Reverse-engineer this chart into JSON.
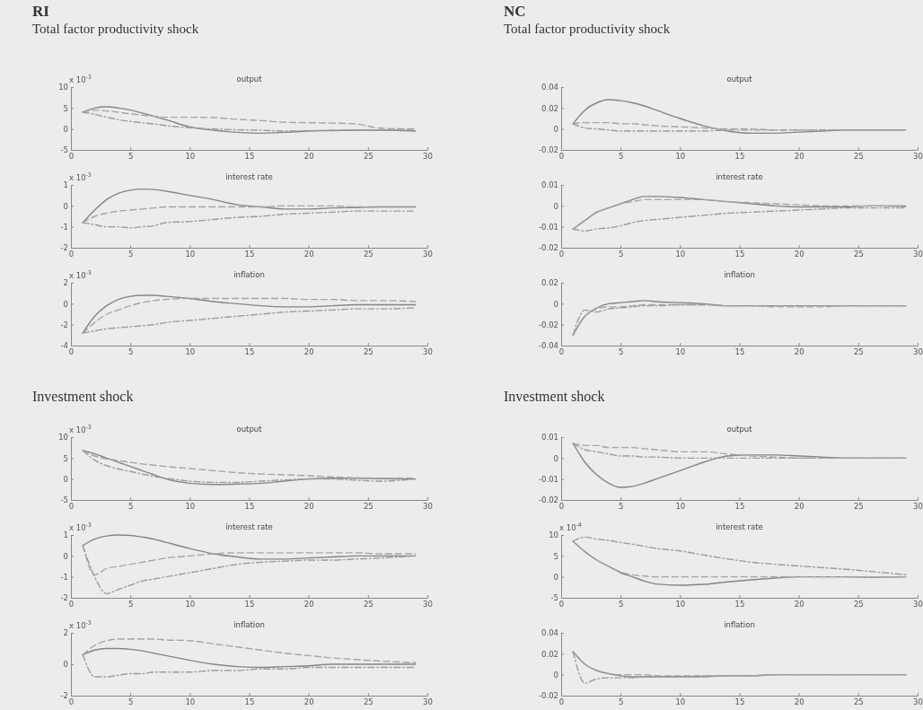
{
  "chart_data": [
    {
      "type": "other",
      "title": "RI",
      "subtitle": "Total factor productivity shock"
    },
    {
      "type": "line",
      "title": "output",
      "annotations": [
        "x 10$^{-3}$"
      ],
      "xlim": [
        0,
        30
      ],
      "xticks": [
        0,
        5,
        10,
        15,
        20,
        25,
        30
      ],
      "ylim": [
        -5,
        10
      ],
      "yticks": [
        -5,
        0,
        5,
        10
      ],
      "grid": false,
      "marker": "none",
      "x": [
        1,
        2,
        3,
        4,
        5,
        6,
        7,
        8,
        10,
        12,
        14,
        16,
        18,
        20,
        22,
        24,
        26,
        29
      ],
      "series": [
        {
          "color": "#858585",
          "line_style": "solid",
          "values": [
            4,
            5,
            5.3,
            5,
            4.5,
            3.8,
            3,
            2.2,
            0.5,
            -0.3,
            -0.8,
            -1,
            -0.8,
            -0.5,
            -0.4,
            -0.3,
            -0.3,
            -0.5
          ]
        },
        {
          "color": "#a5a5a5",
          "line_style": "dashed",
          "values": [
            4,
            4.5,
            4.3,
            4,
            3.6,
            3.3,
            3,
            2.8,
            2.8,
            2.7,
            2.3,
            2,
            1.6,
            1.5,
            1.4,
            1.2,
            0.2,
            0
          ]
        },
        {
          "color": "#9c9c9c",
          "line_style": "dashdot",
          "values": [
            4,
            3.5,
            2.8,
            2.2,
            1.8,
            1.5,
            1.2,
            0.8,
            0.3,
            0,
            -0.2,
            -0.3,
            -0.5,
            -0.4,
            -0.3,
            -0.2,
            -0.2,
            -0.3
          ]
        }
      ]
    },
    {
      "type": "line",
      "title": "interest rate",
      "annotations": [
        "x 10$^{-3}$"
      ],
      "xlim": [
        0,
        30
      ],
      "xticks": [
        0,
        5,
        10,
        15,
        20,
        25,
        30
      ],
      "ylim": [
        -2,
        1
      ],
      "yticks": [
        -2,
        -1,
        0,
        1
      ],
      "grid": false,
      "marker": "none",
      "x": [
        1,
        2,
        3,
        4,
        5,
        6,
        7,
        8,
        10,
        12,
        14,
        16,
        18,
        20,
        22,
        24,
        26,
        29
      ],
      "series": [
        {
          "color": "#858585",
          "line_style": "solid",
          "values": [
            -0.8,
            -0.2,
            0.3,
            0.6,
            0.75,
            0.8,
            0.78,
            0.7,
            0.5,
            0.3,
            0.05,
            -0.05,
            -0.15,
            -0.15,
            -0.1,
            -0.08,
            -0.05,
            -0.05
          ]
        },
        {
          "color": "#a5a5a5",
          "line_style": "dashed",
          "values": [
            -0.8,
            -0.5,
            -0.35,
            -0.25,
            -0.2,
            -0.15,
            -0.1,
            -0.05,
            -0.05,
            -0.05,
            -0.05,
            -0.05,
            0,
            0,
            0,
            -0.05,
            -0.05,
            -0.05
          ]
        },
        {
          "color": "#9c9c9c",
          "line_style": "dashdot",
          "values": [
            -0.8,
            -0.9,
            -1,
            -1,
            -1.05,
            -1,
            -0.95,
            -0.8,
            -0.75,
            -0.65,
            -0.55,
            -0.5,
            -0.4,
            -0.35,
            -0.3,
            -0.25,
            -0.25,
            -0.25
          ]
        }
      ]
    },
    {
      "type": "line",
      "title": "inflation",
      "annotations": [
        "x 10$^{-3}$"
      ],
      "xlim": [
        0,
        30
      ],
      "xticks": [
        0,
        5,
        10,
        15,
        20,
        25,
        30
      ],
      "ylim": [
        -4,
        2
      ],
      "yticks": [
        -4,
        -2,
        0,
        2
      ],
      "grid": false,
      "marker": "none",
      "x": [
        1,
        2,
        3,
        4,
        5,
        6,
        7,
        8,
        10,
        12,
        14,
        16,
        18,
        20,
        22,
        24,
        26,
        29
      ],
      "series": [
        {
          "color": "#858585",
          "line_style": "solid",
          "values": [
            -2.8,
            -1.2,
            -0.2,
            0.4,
            0.7,
            0.8,
            0.8,
            0.7,
            0.5,
            0.2,
            0,
            -0.2,
            -0.3,
            -0.3,
            -0.2,
            -0.1,
            -0.1,
            -0.1
          ]
        },
        {
          "color": "#a5a5a5",
          "line_style": "dashed",
          "values": [
            -2.8,
            -1.8,
            -1,
            -0.6,
            -0.2,
            0.1,
            0.3,
            0.4,
            0.5,
            0.5,
            0.5,
            0.5,
            0.5,
            0.4,
            0.4,
            0.3,
            0.3,
            0.2
          ]
        },
        {
          "color": "#9c9c9c",
          "line_style": "dashdot",
          "values": [
            -2.8,
            -2.6,
            -2.4,
            -2.3,
            -2.2,
            -2.1,
            -2,
            -1.8,
            -1.6,
            -1.4,
            -1.2,
            -1,
            -0.8,
            -0.7,
            -0.6,
            -0.5,
            -0.5,
            -0.4
          ]
        }
      ]
    },
    {
      "type": "other",
      "title": "NC",
      "subtitle": "Total factor productivity shock"
    },
    {
      "type": "line",
      "title": "output",
      "xlim": [
        0,
        30
      ],
      "xticks": [
        0,
        5,
        10,
        15,
        20,
        25,
        30
      ],
      "ylim": [
        -0.02,
        0.04
      ],
      "yticks": [
        -0.02,
        0,
        0.02,
        0.04
      ],
      "grid": false,
      "marker": "none",
      "x": [
        1,
        2,
        3,
        4,
        5,
        6,
        7,
        8,
        10,
        12,
        14,
        16,
        18,
        20,
        22,
        24,
        26,
        29
      ],
      "series": [
        {
          "color": "#858585",
          "line_style": "solid",
          "values": [
            0.005,
            0.018,
            0.025,
            0.028,
            0.027,
            0.025,
            0.022,
            0.018,
            0.01,
            0.003,
            -0.002,
            -0.004,
            -0.004,
            -0.003,
            -0.002,
            -0.001,
            -0.001,
            -0.001
          ]
        },
        {
          "color": "#a5a5a5",
          "line_style": "dashed",
          "values": [
            0.005,
            0.006,
            0.006,
            0.006,
            0.005,
            0.005,
            0.004,
            0.003,
            0.002,
            0.001,
            0,
            0,
            -0.001,
            -0.001,
            -0.001,
            -0.001,
            -0.001,
            -0.001
          ]
        },
        {
          "color": "#9c9c9c",
          "line_style": "dashdot",
          "values": [
            0.005,
            0.001,
            0,
            -0.001,
            -0.002,
            -0.002,
            -0.002,
            -0.002,
            -0.002,
            -0.002,
            -0.001,
            -0.001,
            -0.001,
            -0.001,
            -0.001,
            -0.001,
            -0.001,
            -0.001
          ]
        }
      ]
    },
    {
      "type": "line",
      "title": "interest rate",
      "xlim": [
        0,
        30
      ],
      "xticks": [
        0,
        5,
        10,
        15,
        20,
        25,
        30
      ],
      "ylim": [
        -0.02,
        0.01
      ],
      "yticks": [
        -0.02,
        -0.01,
        0,
        0.01
      ],
      "grid": false,
      "marker": "none",
      "x": [
        1,
        2,
        3,
        4,
        5,
        6,
        7,
        8,
        10,
        12,
        14,
        16,
        18,
        20,
        22,
        24,
        26,
        29
      ],
      "series": [
        {
          "color": "#858585",
          "line_style": "solid",
          "values": [
            -0.011,
            -0.007,
            -0.003,
            -0.001,
            0.001,
            0.003,
            0.0045,
            0.0045,
            0.004,
            0.003,
            0.002,
            0.001,
            0,
            -0.0005,
            -0.0005,
            -0.0005,
            0,
            0
          ]
        },
        {
          "color": "#a5a5a5",
          "line_style": "dashed",
          "values": [
            -0.011,
            -0.007,
            -0.003,
            -0.001,
            0.001,
            0.002,
            0.003,
            0.003,
            0.003,
            0.003,
            0.002,
            0.0015,
            0.001,
            0.0005,
            0,
            0,
            0,
            -0.0005
          ]
        },
        {
          "color": "#9c9c9c",
          "line_style": "dashdot",
          "values": [
            -0.011,
            -0.012,
            -0.011,
            -0.0105,
            -0.0095,
            -0.008,
            -0.007,
            -0.0065,
            -0.0055,
            -0.0045,
            -0.0035,
            -0.003,
            -0.0025,
            -0.002,
            -0.0015,
            -0.001,
            -0.001,
            -0.001
          ]
        }
      ]
    },
    {
      "type": "line",
      "title": "inflation",
      "xlim": [
        0,
        30
      ],
      "xticks": [
        0,
        5,
        10,
        15,
        20,
        25,
        30
      ],
      "ylim": [
        -0.04,
        0.02
      ],
      "yticks": [
        -0.04,
        -0.02,
        0,
        0.02
      ],
      "grid": false,
      "marker": "none",
      "x": [
        1,
        2,
        3,
        4,
        5,
        6,
        7,
        8,
        10,
        12,
        14,
        16,
        18,
        20,
        22,
        24,
        26,
        29
      ],
      "series": [
        {
          "color": "#858585",
          "line_style": "solid",
          "values": [
            -0.03,
            -0.012,
            -0.004,
            0,
            0.001,
            0.002,
            0.003,
            0.002,
            0.001,
            0,
            -0.002,
            -0.002,
            -0.002,
            -0.002,
            -0.002,
            -0.002,
            -0.002,
            -0.002
          ]
        },
        {
          "color": "#a5a5a5",
          "line_style": "dashed",
          "values": [
            -0.03,
            -0.012,
            -0.005,
            -0.003,
            -0.003,
            -0.002,
            -0.001,
            -0.001,
            -0.001,
            -0.001,
            -0.002,
            -0.002,
            -0.003,
            -0.003,
            -0.003,
            -0.002,
            -0.002,
            -0.002
          ]
        },
        {
          "color": "#9c9c9c",
          "line_style": "dashdot",
          "values": [
            -0.03,
            -0.006,
            -0.008,
            -0.005,
            -0.004,
            -0.003,
            -0.002,
            -0.002,
            -0.001,
            -0.001,
            -0.002,
            -0.002,
            -0.002,
            -0.002,
            -0.002,
            -0.002,
            -0.002,
            -0.002
          ]
        }
      ]
    },
    {
      "type": "other",
      "title": "Investment shock"
    },
    {
      "type": "line",
      "title": "output",
      "annotations": [
        "x 10$^{-3}$"
      ],
      "xlim": [
        0,
        30
      ],
      "xticks": [
        0,
        5,
        10,
        15,
        20,
        25,
        30
      ],
      "ylim": [
        -5,
        10
      ],
      "yticks": [
        -5,
        0,
        5,
        10
      ],
      "grid": false,
      "marker": "none",
      "x": [
        1,
        2,
        3,
        4,
        5,
        6,
        7,
        8,
        10,
        12,
        14,
        16,
        18,
        20,
        22,
        24,
        26,
        29
      ],
      "series": [
        {
          "color": "#858585",
          "line_style": "solid",
          "values": [
            6.8,
            6,
            5,
            4,
            3,
            2,
            1,
            0,
            -1,
            -1.3,
            -1.2,
            -1,
            -0.5,
            0,
            0.2,
            0.2,
            0.1,
            0
          ]
        },
        {
          "color": "#a5a5a5",
          "line_style": "dashed",
          "values": [
            6.8,
            5.5,
            4.8,
            4.4,
            4,
            3.6,
            3.3,
            3,
            2.5,
            2,
            1.5,
            1.2,
            1,
            0.8,
            0.5,
            0.3,
            0.2,
            0.2
          ]
        },
        {
          "color": "#9c9c9c",
          "line_style": "dashdot",
          "values": [
            6.8,
            4.5,
            3.2,
            2.4,
            1.8,
            1.2,
            0.6,
            0.2,
            -0.5,
            -0.8,
            -0.8,
            -0.5,
            -0.2,
            0,
            0,
            -0.3,
            -0.5,
            0
          ]
        }
      ]
    },
    {
      "type": "line",
      "title": "interest rate",
      "annotations": [
        "x 10$^{-3}$"
      ],
      "xlim": [
        0,
        30
      ],
      "xticks": [
        0,
        5,
        10,
        15,
        20,
        25,
        30
      ],
      "ylim": [
        -2,
        1
      ],
      "yticks": [
        -2,
        -1,
        0,
        1
      ],
      "grid": false,
      "marker": "none",
      "x": [
        1,
        2,
        3,
        4,
        5,
        6,
        7,
        8,
        10,
        12,
        14,
        16,
        18,
        20,
        22,
        24,
        26,
        29
      ],
      "series": [
        {
          "color": "#858585",
          "line_style": "solid",
          "values": [
            0.5,
            0.8,
            0.95,
            1,
            0.98,
            0.9,
            0.8,
            0.65,
            0.35,
            0.1,
            -0.05,
            -0.15,
            -0.15,
            -0.1,
            -0.05,
            0,
            0,
            0
          ]
        },
        {
          "color": "#a5a5a5",
          "line_style": "dashed",
          "values": [
            0.5,
            -0.9,
            -0.6,
            -0.5,
            -0.4,
            -0.3,
            -0.2,
            -0.1,
            0,
            0.1,
            0.15,
            0.15,
            0.15,
            0.15,
            0.15,
            0.15,
            0.1,
            0.1
          ]
        },
        {
          "color": "#9c9c9c",
          "line_style": "dashdot",
          "values": [
            0.5,
            -1,
            -1.8,
            -1.6,
            -1.4,
            -1.2,
            -1.1,
            -1,
            -0.8,
            -0.6,
            -0.4,
            -0.3,
            -0.25,
            -0.2,
            -0.2,
            -0.15,
            -0.1,
            0
          ]
        }
      ]
    },
    {
      "type": "line",
      "title": "inflation",
      "annotations": [
        "x 10$^{-3}$"
      ],
      "xlim": [
        0,
        30
      ],
      "xticks": [
        0,
        5,
        10,
        15,
        20,
        25,
        30
      ],
      "ylim": [
        -2,
        2
      ],
      "yticks": [
        -2,
        0,
        2
      ],
      "grid": false,
      "marker": "none",
      "x": [
        1,
        2,
        3,
        4,
        5,
        6,
        7,
        8,
        10,
        12,
        14,
        16,
        18,
        20,
        22,
        24,
        26,
        29
      ],
      "series": [
        {
          "color": "#858585",
          "line_style": "solid",
          "values": [
            0.6,
            0.9,
            1,
            1,
            0.95,
            0.85,
            0.7,
            0.55,
            0.25,
            0,
            -0.15,
            -0.2,
            -0.15,
            -0.1,
            0,
            0,
            0,
            0
          ]
        },
        {
          "color": "#a5a5a5",
          "line_style": "dashed",
          "values": [
            0.6,
            1.2,
            1.5,
            1.6,
            1.6,
            1.6,
            1.6,
            1.55,
            1.5,
            1.3,
            1.1,
            0.9,
            0.7,
            0.55,
            0.4,
            0.3,
            0.2,
            0.1
          ]
        },
        {
          "color": "#9c9c9c",
          "line_style": "dashdot",
          "values": [
            0.6,
            -0.8,
            -0.8,
            -0.7,
            -0.6,
            -0.6,
            -0.5,
            -0.5,
            -0.5,
            -0.4,
            -0.4,
            -0.3,
            -0.3,
            -0.2,
            -0.2,
            -0.2,
            -0.2,
            -0.2
          ]
        }
      ]
    },
    {
      "type": "other",
      "title": "Investment shock"
    },
    {
      "type": "line",
      "title": "output",
      "xlim": [
        0,
        30
      ],
      "xticks": [
        0,
        5,
        10,
        15,
        20,
        25,
        30
      ],
      "ylim": [
        -0.02,
        0.01
      ],
      "yticks": [
        -0.02,
        -0.01,
        0,
        0.01
      ],
      "grid": false,
      "marker": "none",
      "x": [
        1,
        2,
        3,
        4,
        5,
        6,
        7,
        8,
        10,
        12,
        14,
        16,
        18,
        20,
        22,
        24,
        26,
        29
      ],
      "series": [
        {
          "color": "#858585",
          "line_style": "solid",
          "values": [
            0.007,
            -0.002,
            -0.008,
            -0.012,
            -0.014,
            -0.0135,
            -0.012,
            -0.01,
            -0.006,
            -0.002,
            0.001,
            0.0015,
            0.0015,
            0.001,
            0.0005,
            0,
            0,
            0
          ]
        },
        {
          "color": "#a5a5a5",
          "line_style": "dashed",
          "values": [
            0.007,
            0.006,
            0.006,
            0.005,
            0.005,
            0.005,
            0.0045,
            0.004,
            0.003,
            0.003,
            0.002,
            0.001,
            0.0005,
            0,
            0,
            0,
            0,
            0
          ]
        },
        {
          "color": "#9c9c9c",
          "line_style": "dashdot",
          "values": [
            0.007,
            0.004,
            0.003,
            0.002,
            0.001,
            0.001,
            0.0005,
            0.0005,
            0,
            0,
            0,
            0,
            0,
            0,
            0,
            0,
            0,
            0
          ]
        }
      ]
    },
    {
      "type": "line",
      "title": "interest rate",
      "annotations": [
        "x 10$^{-4}$"
      ],
      "xlim": [
        0,
        30
      ],
      "xticks": [
        0,
        5,
        10,
        15,
        20,
        25,
        30
      ],
      "ylim": [
        -5,
        10
      ],
      "yticks": [
        -5,
        0,
        5,
        10
      ],
      "grid": false,
      "marker": "none",
      "x": [
        1,
        2,
        3,
        4,
        5,
        6,
        7,
        8,
        10,
        12,
        14,
        16,
        18,
        20,
        22,
        24,
        26,
        29
      ],
      "series": [
        {
          "color": "#858585",
          "line_style": "solid",
          "values": [
            8.5,
            6,
            4,
            2.5,
            1,
            0,
            -1,
            -1.7,
            -2,
            -1.8,
            -1.2,
            -0.7,
            -0.3,
            0,
            0,
            0,
            -0.1,
            0
          ]
        },
        {
          "color": "#a5a5a5",
          "line_style": "dashed",
          "values": [
            8.5,
            6,
            4,
            2.5,
            1.2,
            0.5,
            0.2,
            0,
            0,
            0,
            0,
            0,
            0,
            0,
            0,
            0,
            0,
            0
          ]
        },
        {
          "color": "#9c9c9c",
          "line_style": "dashdot",
          "values": [
            8.5,
            9.5,
            9,
            8.7,
            8.2,
            7.8,
            7.3,
            6.8,
            6.2,
            5.2,
            4.3,
            3.5,
            3,
            2.6,
            2.2,
            1.8,
            1.3,
            0.5
          ]
        }
      ]
    },
    {
      "type": "line",
      "title": "inflation",
      "xlim": [
        0,
        30
      ],
      "xticks": [
        0,
        5,
        10,
        15,
        20,
        25,
        30
      ],
      "ylim": [
        -0.02,
        0.04
      ],
      "yticks": [
        -0.02,
        0,
        0.02,
        0.04
      ],
      "grid": false,
      "marker": "none",
      "x": [
        1,
        2,
        3,
        4,
        5,
        6,
        7,
        8,
        10,
        12,
        14,
        16,
        18,
        20,
        22,
        24,
        26,
        29
      ],
      "series": [
        {
          "color": "#858585",
          "line_style": "solid",
          "values": [
            0.022,
            0.01,
            0.004,
            0.001,
            -0.001,
            -0.002,
            -0.002,
            -0.002,
            -0.002,
            -0.002,
            -0.001,
            -0.001,
            0,
            0,
            0,
            0,
            0,
            0
          ]
        },
        {
          "color": "#a5a5a5",
          "line_style": "dashed",
          "values": [
            0.022,
            0.01,
            0.004,
            0.001,
            0,
            0,
            0,
            -0.001,
            -0.001,
            -0.001,
            -0.001,
            -0.001,
            0,
            0,
            0,
            0,
            0,
            0
          ]
        },
        {
          "color": "#9c9c9c",
          "line_style": "dashdot",
          "values": [
            0.022,
            -0.008,
            -0.004,
            -0.003,
            -0.003,
            -0.003,
            -0.002,
            -0.002,
            -0.002,
            -0.001,
            -0.001,
            -0.001,
            0,
            0,
            0,
            0,
            0,
            0
          ]
        }
      ]
    }
  ]
}
